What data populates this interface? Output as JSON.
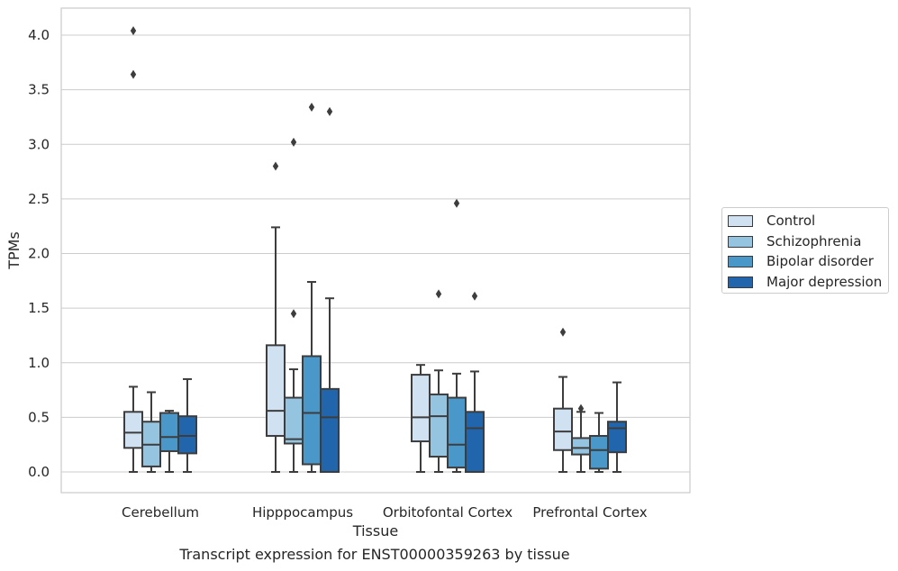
{
  "chart_data": {
    "type": "boxplot",
    "xlabel": "Tissue",
    "ylabel": "TPMs",
    "caption": "Transcript expression for ENST00000359263 by tissue",
    "ylim": [
      -0.2,
      4.25
    ],
    "yticks": [
      0.0,
      0.5,
      1.0,
      1.5,
      2.0,
      2.5,
      3.0,
      3.5,
      4.0
    ],
    "ytick_labels": [
      "0.0",
      "0.5",
      "1.0",
      "1.5",
      "2.0",
      "2.5",
      "3.0",
      "3.5",
      "4.0"
    ],
    "grid": "horizontal",
    "legend_position": "right",
    "categories": [
      "Cerebellum",
      "Hipppocampus",
      "Orbitofontal Cortex",
      "Prefrontal Cortex"
    ],
    "series": [
      {
        "name": "Control",
        "color": "#d0e1f2",
        "boxes": [
          {
            "whislo": 0.0,
            "q1": 0.22,
            "med": 0.36,
            "q3": 0.55,
            "whishi": 0.78,
            "fliers": [
              3.64,
              4.04
            ]
          },
          {
            "whislo": 0.0,
            "q1": 0.33,
            "med": 0.56,
            "q3": 1.16,
            "whishi": 2.24,
            "fliers": [
              2.8
            ]
          },
          {
            "whislo": 0.0,
            "q1": 0.28,
            "med": 0.5,
            "q3": 0.89,
            "whishi": 0.98,
            "fliers": []
          },
          {
            "whislo": 0.0,
            "q1": 0.2,
            "med": 0.37,
            "q3": 0.58,
            "whishi": 0.87,
            "fliers": [
              1.28
            ]
          }
        ]
      },
      {
        "name": "Schizophrenia",
        "color": "#94c4df",
        "boxes": [
          {
            "whislo": 0.0,
            "q1": 0.05,
            "med": 0.25,
            "q3": 0.46,
            "whishi": 0.73,
            "fliers": []
          },
          {
            "whislo": 0.0,
            "q1": 0.26,
            "med": 0.3,
            "q3": 0.68,
            "whishi": 0.94,
            "fliers": [
              1.45,
              3.02
            ]
          },
          {
            "whislo": 0.0,
            "q1": 0.14,
            "med": 0.51,
            "q3": 0.71,
            "whishi": 0.93,
            "fliers": [
              1.63
            ]
          },
          {
            "whislo": 0.0,
            "q1": 0.16,
            "med": 0.22,
            "q3": 0.31,
            "whishi": 0.55,
            "fliers": [
              0.58
            ]
          }
        ]
      },
      {
        "name": "Bipolar disorder",
        "color": "#4a98c9",
        "boxes": [
          {
            "whislo": 0.0,
            "q1": 0.19,
            "med": 0.32,
            "q3": 0.54,
            "whishi": 0.56,
            "fliers": []
          },
          {
            "whislo": 0.0,
            "q1": 0.07,
            "med": 0.54,
            "q3": 1.06,
            "whishi": 1.74,
            "fliers": [
              3.34
            ]
          },
          {
            "whislo": 0.0,
            "q1": 0.04,
            "med": 0.25,
            "q3": 0.68,
            "whishi": 0.9,
            "fliers": [
              2.46
            ]
          },
          {
            "whislo": 0.0,
            "q1": 0.03,
            "med": 0.2,
            "q3": 0.33,
            "whishi": 0.54,
            "fliers": []
          }
        ]
      },
      {
        "name": "Major depression",
        "color": "#2166ac",
        "boxes": [
          {
            "whislo": 0.0,
            "q1": 0.17,
            "med": 0.33,
            "q3": 0.51,
            "whishi": 0.85,
            "fliers": []
          },
          {
            "whislo": 0.0,
            "q1": 0.0,
            "med": 0.5,
            "q3": 0.76,
            "whishi": 1.59,
            "fliers": [
              3.3
            ]
          },
          {
            "whislo": 0.0,
            "q1": 0.0,
            "med": 0.4,
            "q3": 0.55,
            "whishi": 0.92,
            "fliers": [
              1.61
            ]
          },
          {
            "whislo": 0.0,
            "q1": 0.18,
            "med": 0.4,
            "q3": 0.46,
            "whishi": 0.82,
            "fliers": []
          }
        ]
      }
    ]
  }
}
